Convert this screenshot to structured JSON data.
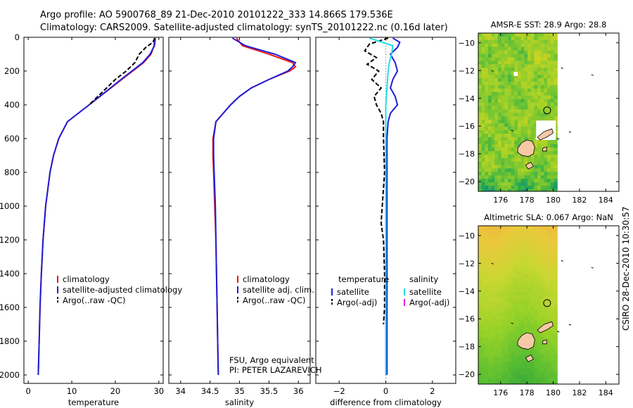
{
  "header": {
    "line1": "Argo profile: AO 5900768_89 21-Dec-2010 20101222_333 14.866S 179.536E",
    "line2": "Climatology: CARS2009. Satellite-adjusted climatology: synTS_20101222.nc (0.16d later)"
  },
  "side_label": "CSIRO 28-Dec-2010 10:30:57",
  "pi_note": [
    "FSU, Argo equivalent",
    "PI: PETER LAZAREVICH"
  ],
  "colors": {
    "climatology": "#e41a1c",
    "satellite": "#1f1fd6",
    "argo": "#000000",
    "sat_diff_sal": "#22dde8",
    "argo_adj_sal": "#e020d0",
    "coast": "#000000",
    "land": "#f6c9a6"
  },
  "chart_data": [
    {
      "type": "line",
      "xlabel": "temperature",
      "ylabel": "",
      "xlim": [
        -1,
        31
      ],
      "ylim": [
        2050,
        0
      ],
      "xticks": [
        0,
        10,
        20,
        30
      ],
      "yticks": [
        0,
        200,
        400,
        600,
        800,
        1000,
        1200,
        1400,
        1600,
        1800,
        2000
      ],
      "series": [
        {
          "name": "climatology",
          "y": [
            5,
            50,
            100,
            150,
            200,
            250,
            300,
            400,
            500,
            600,
            700,
            800,
            1000,
            1200,
            1400,
            1600,
            1800,
            2000
          ],
          "x": [
            29.0,
            28.9,
            28.2,
            26.5,
            24.0,
            21.5,
            19.0,
            14.0,
            9.0,
            7.0,
            5.8,
            5.0,
            4.0,
            3.4,
            3.0,
            2.7,
            2.5,
            2.3
          ]
        },
        {
          "name": "satellite-adjusted climatology",
          "y": [
            5,
            50,
            100,
            150,
            200,
            250,
            300,
            400,
            500,
            600,
            700,
            800,
            1000,
            1200,
            1400,
            1600,
            1800,
            2000
          ],
          "x": [
            29.2,
            29.0,
            28.0,
            26.3,
            23.8,
            21.3,
            18.9,
            14.0,
            9.0,
            7.0,
            5.8,
            5.0,
            4.0,
            3.4,
            3.0,
            2.7,
            2.5,
            2.3
          ]
        },
        {
          "name": "Argo(..raw -QC)",
          "y": [
            5,
            30,
            60,
            100,
            150,
            200,
            250,
            300,
            350,
            400
          ],
          "x": [
            29.1,
            28.6,
            27.0,
            25.5,
            24.5,
            22.5,
            20.0,
            18.0,
            16.0,
            14.0
          ]
        }
      ]
    },
    {
      "type": "line",
      "xlabel": "salinity",
      "ylabel": "",
      "xlim": [
        33.8,
        36.2
      ],
      "ylim": [
        2050,
        0
      ],
      "xticks": [
        34,
        34.5,
        35,
        35.5,
        36
      ],
      "xticklabels": [
        "34",
        "34.5",
        "35",
        "35.5",
        "36"
      ],
      "series": [
        {
          "name": "climatology",
          "y": [
            5,
            50,
            100,
            150,
            175,
            200,
            250,
            300,
            350,
            400,
            500,
            600,
            700,
            800,
            1000,
            1200,
            1400,
            1600,
            1800,
            2000
          ],
          "x": [
            34.95,
            35.05,
            35.5,
            35.9,
            35.95,
            35.85,
            35.5,
            35.2,
            35.0,
            34.85,
            34.6,
            34.55,
            34.55,
            34.56,
            34.58,
            34.6,
            34.61,
            34.62,
            34.63,
            34.64
          ]
        },
        {
          "name": "satellite adj. clim.",
          "y": [
            5,
            50,
            100,
            150,
            175,
            200,
            250,
            300,
            350,
            400,
            500,
            600,
            700,
            800,
            1000,
            1200,
            1400,
            1600,
            1800,
            2000
          ],
          "x": [
            34.88,
            35.1,
            35.6,
            35.95,
            35.9,
            35.82,
            35.5,
            35.2,
            35.0,
            34.85,
            34.6,
            34.56,
            34.56,
            34.57,
            34.59,
            34.6,
            34.61,
            34.62,
            34.63,
            34.64
          ]
        },
        {
          "name": "Argo(..raw -QC)",
          "y": [],
          "x": []
        }
      ]
    },
    {
      "type": "line",
      "xlabel": "difference from climatology",
      "ylabel": "",
      "xlim": [
        -3,
        3
      ],
      "ylim": [
        2050,
        0
      ],
      "xticks": [
        -2,
        0,
        2
      ],
      "legend_headers": [
        "temperature",
        "salinity"
      ],
      "series": [
        {
          "name": "satellite",
          "group": "temperature",
          "y": [
            5,
            30,
            60,
            100,
            150,
            200,
            250,
            300,
            350,
            400,
            450,
            500,
            600,
            800,
            1000,
            1200,
            1400,
            1600,
            1800,
            2000
          ],
          "x": [
            0.3,
            0.6,
            0.5,
            0.2,
            0.4,
            0.5,
            0.3,
            0.2,
            0.4,
            0.5,
            0.2,
            0.1,
            0.05,
            0.05,
            0.05,
            0.05,
            0.05,
            0.05,
            0.05,
            0.05
          ]
        },
        {
          "name": "Argo(-adj)",
          "group": "temperature",
          "y": [
            5,
            40,
            80,
            120,
            160,
            200,
            250,
            300,
            350,
            400,
            450,
            500,
            600,
            800,
            1000,
            1100,
            1200,
            1400,
            1600,
            1700
          ],
          "x": [
            0.1,
            -0.7,
            -0.9,
            -0.4,
            -0.8,
            -0.3,
            -0.6,
            -0.2,
            -0.5,
            -0.4,
            -0.2,
            -0.1,
            -0.1,
            -0.05,
            -0.15,
            -0.2,
            -0.1,
            -0.05,
            -0.05,
            -0.1
          ]
        },
        {
          "name": "satellite",
          "group": "salinity",
          "y": [
            5,
            50,
            100,
            150,
            200,
            300,
            400,
            600,
            800,
            1000,
            1200,
            1400,
            1600,
            1800,
            2000
          ],
          "x": [
            -0.7,
            0.3,
            0.25,
            0.15,
            0.1,
            0.05,
            0.0,
            0.0,
            0.0,
            0.0,
            0.0,
            0.0,
            0.0,
            0.0,
            0.0
          ]
        },
        {
          "name": "Argo(-adj)",
          "group": "salinity",
          "y": [],
          "x": []
        }
      ]
    },
    {
      "type": "heatmap",
      "title": "AMSR-E SST: 28.9 Argo: 28.8",
      "xlim": [
        174.3,
        185
      ],
      "ylim": [
        -20.7,
        -9.3
      ],
      "xticks": [
        176,
        178,
        180,
        182,
        184
      ],
      "yticks": [
        -10,
        -12,
        -14,
        -16,
        -18,
        -20
      ],
      "data_coverage_x": [
        174.3,
        180.1
      ],
      "marker": {
        "lon": 179.536,
        "lat": -14.866
      }
    },
    {
      "type": "heatmap",
      "title": "Altimetric SLA: 0.067 Argo: NaN",
      "xlim": [
        174.3,
        185
      ],
      "ylim": [
        -20.7,
        -9.3
      ],
      "xticks": [
        176,
        178,
        180,
        182,
        184
      ],
      "yticks": [
        -10,
        -12,
        -14,
        -16,
        -18,
        -20
      ],
      "data_coverage_x": [
        174.3,
        180.1
      ],
      "marker": {
        "lon": 179.536,
        "lat": -14.866
      }
    }
  ]
}
